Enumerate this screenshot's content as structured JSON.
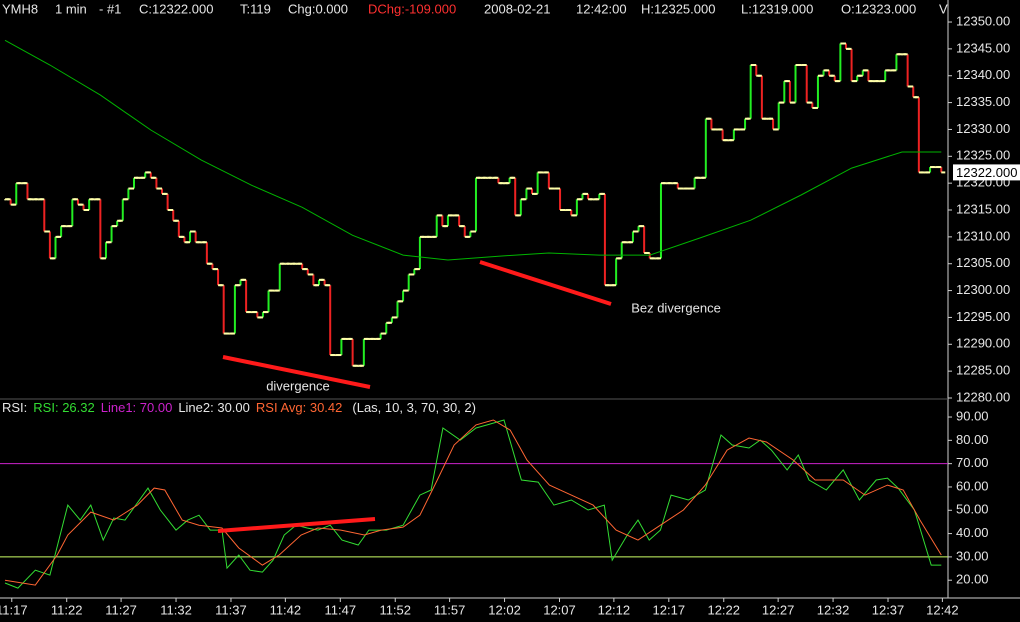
{
  "header": {
    "items": [
      "YMH8",
      "1 min",
      "- #1",
      "C:12322.000",
      "T:119",
      "Chg:0.000",
      "DChg:-109.000",
      "2008-02-21",
      "12:42:00",
      "H:12325.000",
      "L:12319.000",
      "O:12323.000",
      "V"
    ]
  },
  "chart_data": [
    {
      "type": "ohlc",
      "values": [
        12317,
        12316,
        12320,
        12320,
        12317,
        12317,
        12317,
        12311,
        12306,
        12310,
        12312,
        12312,
        12317,
        12316,
        12315,
        12317,
        12317,
        12306,
        12309,
        12312,
        12313,
        12317,
        12319,
        12321,
        12321,
        12322,
        12321,
        12319,
        12318,
        12315,
        12313,
        12310,
        12309,
        12311,
        12309,
        12309,
        12305,
        12304,
        12301,
        12292,
        12292,
        12301,
        12302,
        12296,
        12296,
        12295,
        12296,
        12300,
        12300,
        12305,
        12305,
        12305,
        12305,
        12304,
        12303,
        12301,
        12302,
        12301,
        12288,
        12288,
        12291,
        12291,
        12286,
        12286,
        12291,
        12291,
        12291,
        12292,
        12294,
        12295,
        12298,
        12300,
        12303,
        12304,
        12310,
        12310,
        12310,
        12314,
        12312,
        12314,
        12314,
        12312,
        12310,
        12311,
        12321,
        12321,
        12321,
        12321,
        12320,
        12320,
        12321,
        12314,
        12317,
        12319,
        12318,
        12322,
        12322,
        12319,
        12319,
        12315,
        12315,
        12314,
        12317,
        12318,
        12317,
        12317,
        12318,
        12301,
        12301,
        12306,
        12309,
        12309,
        12311,
        12312,
        12307,
        12306,
        12306,
        12320,
        12320,
        12320,
        12319,
        12319,
        12319,
        12321,
        12321,
        12332,
        12330,
        12330,
        12328,
        12328,
        12330,
        12330,
        12332,
        12342,
        12340,
        12332,
        12332,
        12330,
        12335,
        12339,
        12335,
        12342,
        12342,
        12335,
        12334,
        12340,
        12341,
        12340,
        12339,
        12346,
        12345,
        12339,
        12340,
        12341,
        12339,
        12339,
        12339,
        12341,
        12341,
        12344,
        12344,
        12338,
        12336,
        12322,
        12322,
        12323,
        12323,
        12322
      ],
      "colors": {
        "up": "#22ee22",
        "down": "#ee2222",
        "tick": "#ffffaa"
      },
      "series": [
        {
          "color": "#00b400",
          "x": [
            0,
            8,
            17,
            26,
            35,
            44,
            53,
            62,
            71,
            79,
            88,
            97,
            106,
            115,
            124,
            133,
            142,
            151,
            160,
            167
          ],
          "values": [
            12346.6,
            12342.0,
            12336.4,
            12329.9,
            12324.3,
            12319.6,
            12315.5,
            12310.3,
            12306.6,
            12305.7,
            12306.4,
            12307.0,
            12306.6,
            12306.6,
            12309.8,
            12313.1,
            12317.8,
            12322.8,
            12325.8,
            12325.8
          ]
        }
      ],
      "last_value": 12322,
      "last_label": "12322.000",
      "annotations": [
        "divergence",
        "Bez divergence"
      ],
      "xlim": [
        -0.9,
        168.2
      ],
      "ylim": [
        12280,
        12354.1
      ],
      "yticks": [
        {
          "value": 12350,
          "label": "12350.00"
        },
        {
          "value": 12345,
          "label": "12345.00"
        },
        {
          "value": 12340,
          "label": "12340.00"
        },
        {
          "value": 12335,
          "label": "12335.00"
        },
        {
          "value": 12330,
          "label": "12330.00"
        },
        {
          "value": 12325,
          "label": "12325.00"
        },
        {
          "value": 12320,
          "label": "12320.00"
        },
        {
          "value": 12315,
          "label": "12315.00"
        },
        {
          "value": 12310,
          "label": "12310.00"
        },
        {
          "value": 12305,
          "label": "12305.00"
        },
        {
          "value": 12300,
          "label": "12300.00"
        },
        {
          "value": 12295,
          "label": "12295.00"
        },
        {
          "value": 12290,
          "label": "12290.00"
        },
        {
          "value": 12285,
          "label": "12285.00"
        },
        {
          "value": 12280,
          "label": "12280.00"
        }
      ]
    },
    {
      "type": "line",
      "title": "RSI:",
      "series": [
        {
          "name": "RSI: 26.32",
          "color": "#33dd33",
          "x": [
            0,
            2.3,
            5.4,
            8.0,
            11.2,
            13.4,
            15.3,
            17.5,
            19.4,
            21.4,
            25.5,
            27.7,
            30.5,
            32.6,
            34.6,
            36.6,
            38.7,
            39.6,
            41.7,
            43.7,
            45.9,
            47.8,
            49.8,
            51.9,
            53.9,
            55.8,
            58.0,
            60.1,
            63.0,
            64.9,
            68.0,
            71.0,
            74.0,
            76.0,
            78.1,
            81.2,
            84.0,
            86.0,
            89.0,
            92.1,
            95.1,
            97.9,
            101.0,
            104.0,
            106.9,
            108.3,
            111.0,
            112.9,
            114.9,
            116.9,
            118.8,
            121.9,
            124.9,
            127.7,
            129.7,
            132.7,
            134.7,
            136.7,
            139.5,
            141.5,
            143.4,
            146.5,
            149.5,
            152.4,
            155.4,
            157.4,
            159.3,
            162.2,
            165.2,
            167.0
          ],
          "values": [
            18.8,
            16.6,
            24.3,
            22.2,
            52.2,
            45.8,
            52.2,
            37.2,
            46.7,
            45.8,
            59.5,
            50.1,
            41.5,
            45.8,
            47.9,
            41.5,
            41.5,
            25.2,
            30.8,
            24.3,
            23.5,
            28.6,
            39.4,
            43.6,
            42.4,
            41.5,
            43.6,
            37.2,
            35.1,
            41.5,
            41.5,
            43.6,
            56.5,
            58.7,
            85.3,
            80.1,
            85.3,
            86.6,
            88.7,
            63.0,
            62.1,
            52.2,
            54.4,
            50.1,
            52.2,
            28.6,
            39.4,
            45.8,
            37.2,
            41.5,
            56.5,
            54.4,
            58.7,
            82.3,
            78.0,
            76.7,
            80.1,
            75.8,
            67.3,
            73.7,
            63.0,
            58.7,
            67.3,
            54.4,
            63.0,
            63.8,
            59.5,
            50.1,
            26.5,
            26.5
          ]
        },
        {
          "name": "RSI Avg: 30.42",
          "color": "#ff6633",
          "x": [
            0,
            5.4,
            9.3,
            11.2,
            15.3,
            19.4,
            23.6,
            26.6,
            28.5,
            31.6,
            34.6,
            38.7,
            41.7,
            45.9,
            48.9,
            52.8,
            55.8,
            59.9,
            64.1,
            67.1,
            71.0,
            74.0,
            77.1,
            80.1,
            84.0,
            87.1,
            90.1,
            93.1,
            97.1,
            101.0,
            104.9,
            109.0,
            112.9,
            116.9,
            121.0,
            124.9,
            128.8,
            132.7,
            135.8,
            140.6,
            144.5,
            149.5,
            153.4,
            157.4,
            160.2,
            163.2,
            167.0
          ],
          "values": [
            20.0,
            17.9,
            30.8,
            39.4,
            49.2,
            45.8,
            52.2,
            59.5,
            58.7,
            45.8,
            43.6,
            42.4,
            33.8,
            26.5,
            30.8,
            39.4,
            42.4,
            41.5,
            39.4,
            41.5,
            42.8,
            47.9,
            63.0,
            78.0,
            86.6,
            88.7,
            84.4,
            71.5,
            60.8,
            56.5,
            52.2,
            41.5,
            37.2,
            43.6,
            50.1,
            60.8,
            75.8,
            81.0,
            79.3,
            71.5,
            63.0,
            63.0,
            56.5,
            60.8,
            58.7,
            45.8,
            30.8
          ]
        }
      ],
      "levels": [
        {
          "name": "Line1: 70.00",
          "value": 70,
          "color": "#cc22cc"
        },
        {
          "name": "Line2: 30.00",
          "value": 30,
          "color": "#ccff66"
        }
      ],
      "params": "(Las, 10, 3, 70, 30, 2)",
      "xlim": [
        -0.9,
        168.2
      ],
      "ylim": [
        12.8,
        97.3
      ],
      "yticks": [
        {
          "value": 90,
          "label": "90.00"
        },
        {
          "value": 80,
          "label": "80.00"
        },
        {
          "value": 70,
          "label": "70.00"
        },
        {
          "value": 60,
          "label": "60.00"
        },
        {
          "value": 50,
          "label": "50.00"
        },
        {
          "value": 40,
          "label": "40.00"
        },
        {
          "value": 30,
          "label": "30.00"
        },
        {
          "value": 20,
          "label": "20.00"
        }
      ],
      "xticks": [
        {
          "value": 1.2,
          "label": "11:17"
        },
        {
          "value": 11.0,
          "label": "11:22"
        },
        {
          "value": 20.7,
          "label": "11:27"
        },
        {
          "value": 30.5,
          "label": "11:32"
        },
        {
          "value": 40.3,
          "label": "11:37"
        },
        {
          "value": 50.0,
          "label": "11:42"
        },
        {
          "value": 59.8,
          "label": "11:47"
        },
        {
          "value": 69.6,
          "label": "11:52"
        },
        {
          "value": 79.3,
          "label": "11:57"
        },
        {
          "value": 89.1,
          "label": "12:02"
        },
        {
          "value": 98.9,
          "label": "12:07"
        },
        {
          "value": 108.6,
          "label": "12:12"
        },
        {
          "value": 118.4,
          "label": "12:17"
        },
        {
          "value": 128.2,
          "label": "12:22"
        },
        {
          "value": 137.9,
          "label": "12:27"
        },
        {
          "value": 147.7,
          "label": "12:32"
        },
        {
          "value": 157.5,
          "label": "12:37"
        },
        {
          "value": 167.2,
          "label": "12:42"
        }
      ]
    }
  ]
}
